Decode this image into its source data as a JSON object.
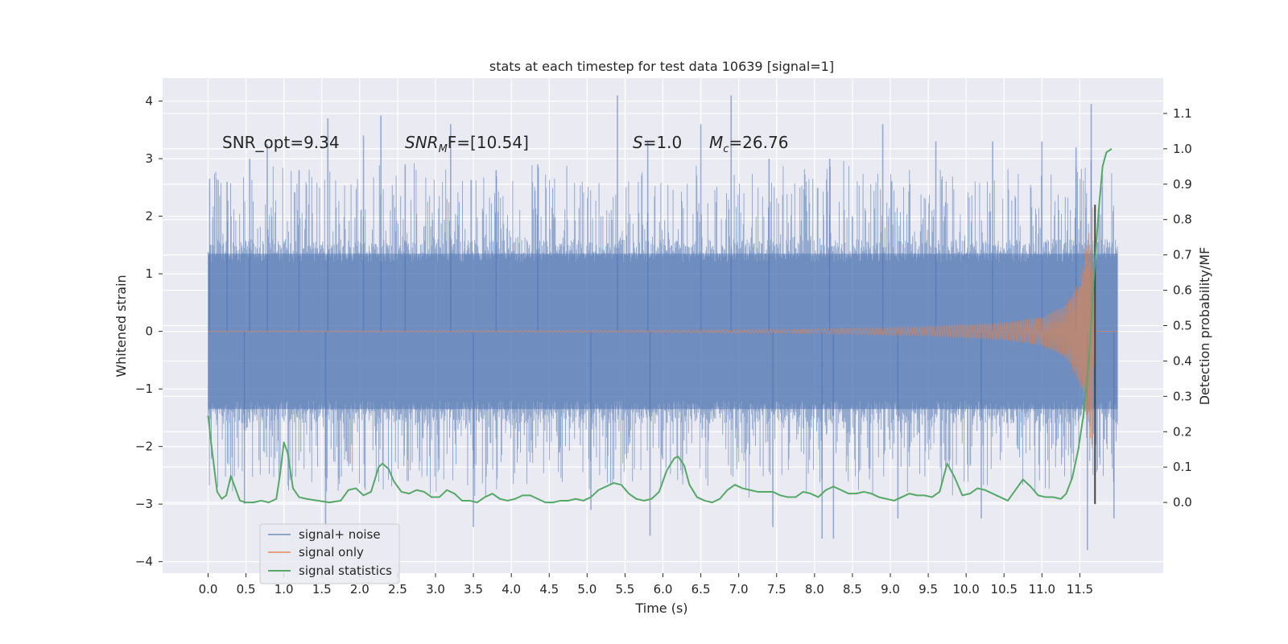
{
  "chart_data": {
    "type": "line",
    "title": "stats at each timestep for test data 10639 [signal=1]",
    "xlabel": "Time (s)",
    "ylabel": "Whitened strain",
    "ylabel_right": "Detection probability/MF",
    "xlim": [
      -0.6,
      12.6
    ],
    "ylim": [
      -4.2,
      4.4
    ],
    "ylim_right": [
      -0.2,
      1.2
    ],
    "x_ticks": [
      0.0,
      0.5,
      1.0,
      1.5,
      2.0,
      2.5,
      3.0,
      3.5,
      4.0,
      4.5,
      5.0,
      5.5,
      6.0,
      6.5,
      7.0,
      7.5,
      8.0,
      8.5,
      9.0,
      9.5,
      10.0,
      10.5,
      11.0,
      11.5
    ],
    "x_tick_labels": [
      "0.0",
      "0.5",
      "1.0",
      "1.5",
      "2.0",
      "2.5",
      "3.0",
      "3.5",
      "4.0",
      "4.5",
      "5.0",
      "5.5",
      "6.0",
      "6.5",
      "7.0",
      "7.5",
      "8.0",
      "8.5",
      "9.0",
      "9.5",
      "10.0",
      "10.5",
      "11.0",
      "11.5"
    ],
    "y_ticks": [
      -4,
      -3,
      -2,
      -1,
      0,
      1,
      2,
      3,
      4
    ],
    "y_tick_labels": [
      "−4",
      "−3",
      "−2",
      "−1",
      "0",
      "1",
      "2",
      "3",
      "4"
    ],
    "y_right_ticks": [
      0.0,
      0.1,
      0.2,
      0.3,
      0.4,
      0.5,
      0.6,
      0.7,
      0.8,
      0.9,
      1.0,
      1.1
    ],
    "y_right_tick_labels": [
      "0.0",
      "0.1",
      "0.2",
      "0.3",
      "0.4",
      "0.5",
      "0.6",
      "0.7",
      "0.8",
      "0.9",
      "1.0",
      "1.1"
    ],
    "grid": true,
    "legend_position": "lower-left",
    "annotations": {
      "snr_opt": "SNR_opt=9.34",
      "snr_mf_label": "SNR",
      "snr_mf_sub": "M",
      "snr_mf_rest": "F=[10.54]",
      "s_label": "S",
      "s_value": "=1.0",
      "mc_label": "M",
      "mc_sub": "c",
      "mc_value": "=26.76"
    },
    "series": [
      {
        "name": "signal+ noise",
        "color": "#4c72b0",
        "opacity": 0.5,
        "x_range": [
          0.0,
          12.0
        ],
        "description_envelope": {
          "typical_low": -1.6,
          "typical_high": 1.6,
          "spike_max": 4.1,
          "spike_min": -3.8
        },
        "spikes": [
          {
            "x": 0.02,
            "y": 2.65
          },
          {
            "x": 0.25,
            "y": 2.6
          },
          {
            "x": 0.55,
            "y": 3.0
          },
          {
            "x": 0.78,
            "y": 3.25
          },
          {
            "x": 1.2,
            "y": 2.8
          },
          {
            "x": 1.58,
            "y": 3.7
          },
          {
            "x": 2.05,
            "y": 3.4
          },
          {
            "x": 2.28,
            "y": 3.75
          },
          {
            "x": 2.6,
            "y": 2.9
          },
          {
            "x": 3.2,
            "y": 3.6
          },
          {
            "x": 3.8,
            "y": 2.8
          },
          {
            "x": 4.35,
            "y": 2.9
          },
          {
            "x": 5.4,
            "y": 4.1
          },
          {
            "x": 5.8,
            "y": 3.3
          },
          {
            "x": 6.5,
            "y": 3.6
          },
          {
            "x": 6.9,
            "y": 4.1
          },
          {
            "x": 7.4,
            "y": 3.0
          },
          {
            "x": 8.2,
            "y": 3.0
          },
          {
            "x": 8.9,
            "y": 3.6
          },
          {
            "x": 9.6,
            "y": 3.3
          },
          {
            "x": 10.35,
            "y": 3.3
          },
          {
            "x": 11.0,
            "y": 3.3
          },
          {
            "x": 11.45,
            "y": 3.2
          },
          {
            "x": 11.65,
            "y": 3.95
          },
          {
            "x": 0.48,
            "y": -3.0
          },
          {
            "x": 1.55,
            "y": -3.4
          },
          {
            "x": 3.5,
            "y": -3.4
          },
          {
            "x": 5.05,
            "y": -3.1
          },
          {
            "x": 5.83,
            "y": -3.55
          },
          {
            "x": 7.45,
            "y": -3.4
          },
          {
            "x": 8.1,
            "y": -3.6
          },
          {
            "x": 8.25,
            "y": -3.6
          },
          {
            "x": 9.1,
            "y": -3.25
          },
          {
            "x": 10.2,
            "y": -3.25
          },
          {
            "x": 11.6,
            "y": -3.8
          },
          {
            "x": 11.95,
            "y": -3.25
          }
        ]
      },
      {
        "name": "signal only",
        "color": "#dd8452",
        "opacity": 0.6,
        "x_range": [
          0.0,
          12.0
        ],
        "amplitude_points": [
          [
            0.0,
            0.01
          ],
          [
            6.0,
            0.02
          ],
          [
            8.0,
            0.04
          ],
          [
            9.5,
            0.08
          ],
          [
            10.5,
            0.15
          ],
          [
            11.0,
            0.25
          ],
          [
            11.3,
            0.45
          ],
          [
            11.5,
            0.9
          ],
          [
            11.62,
            1.7
          ],
          [
            11.68,
            2.3
          ],
          [
            11.7,
            0.02
          ],
          [
            12.0,
            0.0
          ]
        ]
      },
      {
        "name": "signal statistics",
        "color": "#55a868",
        "axis": "right",
        "x": [
          0.0,
          0.05,
          0.12,
          0.18,
          0.24,
          0.3,
          0.36,
          0.42,
          0.5,
          0.6,
          0.7,
          0.8,
          0.9,
          0.95,
          1.0,
          1.05,
          1.12,
          1.2,
          1.3,
          1.45,
          1.6,
          1.75,
          1.85,
          1.95,
          2.05,
          2.15,
          2.25,
          2.3,
          2.38,
          2.45,
          2.55,
          2.65,
          2.75,
          2.85,
          2.95,
          3.05,
          3.15,
          3.25,
          3.35,
          3.45,
          3.55,
          3.65,
          3.75,
          3.85,
          3.95,
          4.05,
          4.15,
          4.25,
          4.35,
          4.45,
          4.55,
          4.65,
          4.75,
          4.85,
          4.95,
          5.05,
          5.15,
          5.25,
          5.35,
          5.45,
          5.55,
          5.65,
          5.75,
          5.85,
          5.95,
          6.05,
          6.15,
          6.2,
          6.28,
          6.35,
          6.45,
          6.55,
          6.65,
          6.75,
          6.85,
          6.95,
          7.05,
          7.15,
          7.25,
          7.35,
          7.45,
          7.55,
          7.65,
          7.75,
          7.85,
          7.95,
          8.05,
          8.15,
          8.25,
          8.35,
          8.45,
          8.55,
          8.65,
          8.75,
          8.85,
          8.95,
          9.05,
          9.15,
          9.25,
          9.35,
          9.45,
          9.55,
          9.65,
          9.75,
          9.85,
          9.95,
          10.05,
          10.15,
          10.25,
          10.35,
          10.45,
          10.55,
          10.65,
          10.75,
          10.85,
          10.95,
          11.05,
          11.15,
          11.25,
          11.32,
          11.4,
          11.48,
          11.55,
          11.62,
          11.68,
          11.75,
          11.8,
          11.85,
          11.92
        ],
        "y": [
          0.245,
          0.15,
          0.03,
          0.01,
          0.02,
          0.075,
          0.04,
          0.005,
          0.0,
          0.0,
          0.005,
          0.0,
          0.01,
          0.08,
          0.17,
          0.14,
          0.04,
          0.015,
          0.01,
          0.005,
          0.0,
          0.005,
          0.035,
          0.04,
          0.02,
          0.03,
          0.1,
          0.11,
          0.095,
          0.06,
          0.03,
          0.025,
          0.035,
          0.03,
          0.015,
          0.015,
          0.035,
          0.025,
          0.005,
          0.005,
          0.0,
          0.015,
          0.025,
          0.01,
          0.005,
          0.01,
          0.02,
          0.02,
          0.01,
          0.0,
          0.0,
          0.005,
          0.005,
          0.01,
          0.005,
          0.015,
          0.035,
          0.045,
          0.055,
          0.05,
          0.025,
          0.01,
          0.005,
          0.01,
          0.03,
          0.09,
          0.125,
          0.13,
          0.105,
          0.05,
          0.015,
          0.005,
          0.0,
          0.01,
          0.035,
          0.05,
          0.04,
          0.035,
          0.03,
          0.03,
          0.03,
          0.02,
          0.015,
          0.015,
          0.03,
          0.025,
          0.015,
          0.035,
          0.045,
          0.035,
          0.025,
          0.025,
          0.03,
          0.025,
          0.015,
          0.01,
          0.005,
          0.015,
          0.025,
          0.02,
          0.02,
          0.015,
          0.03,
          0.11,
          0.07,
          0.02,
          0.025,
          0.04,
          0.035,
          0.025,
          0.015,
          0.005,
          0.035,
          0.065,
          0.045,
          0.02,
          0.015,
          0.015,
          0.01,
          0.025,
          0.07,
          0.15,
          0.25,
          0.4,
          0.62,
          0.83,
          0.95,
          0.99,
          1.0
        ]
      }
    ]
  },
  "vertical_marker": {
    "x": 11.7,
    "color": "#444444"
  }
}
